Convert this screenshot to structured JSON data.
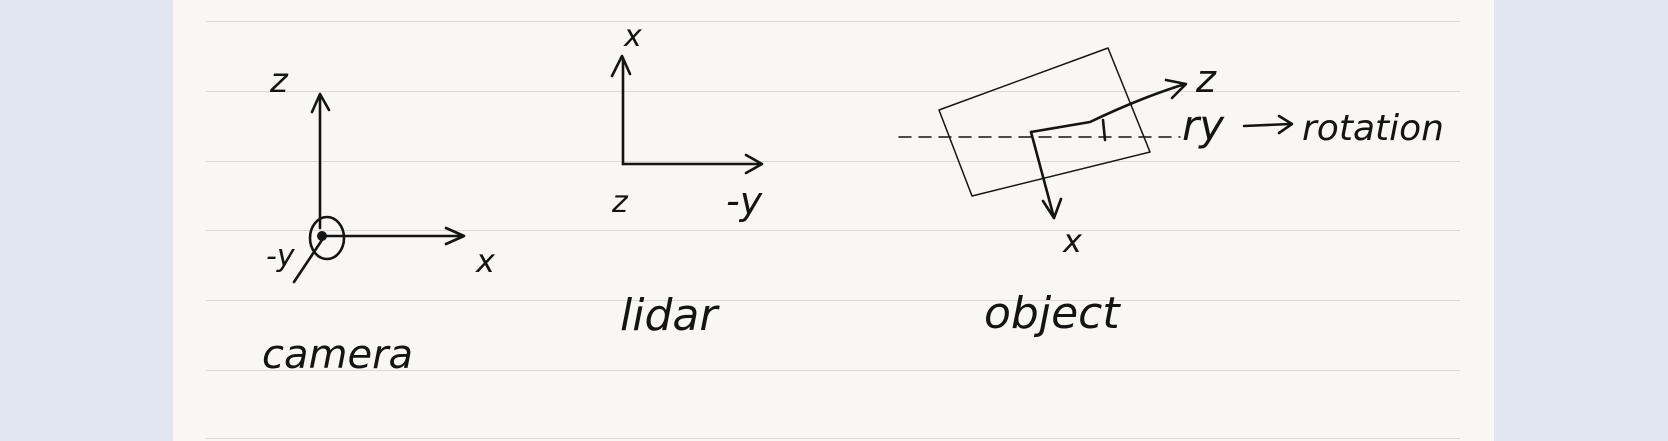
{
  "camera": {
    "axis_z": "z",
    "axis_x": "x",
    "axis_neg_y": "-y",
    "caption": "camera"
  },
  "lidar": {
    "axis_x": "x",
    "axis_neg_y": "-y",
    "axis_z": "z",
    "caption": "lidar"
  },
  "object": {
    "axis_z": "z",
    "axis_x": "x",
    "ry_label": "ry",
    "rotation_label": "rotation",
    "caption": "object"
  }
}
